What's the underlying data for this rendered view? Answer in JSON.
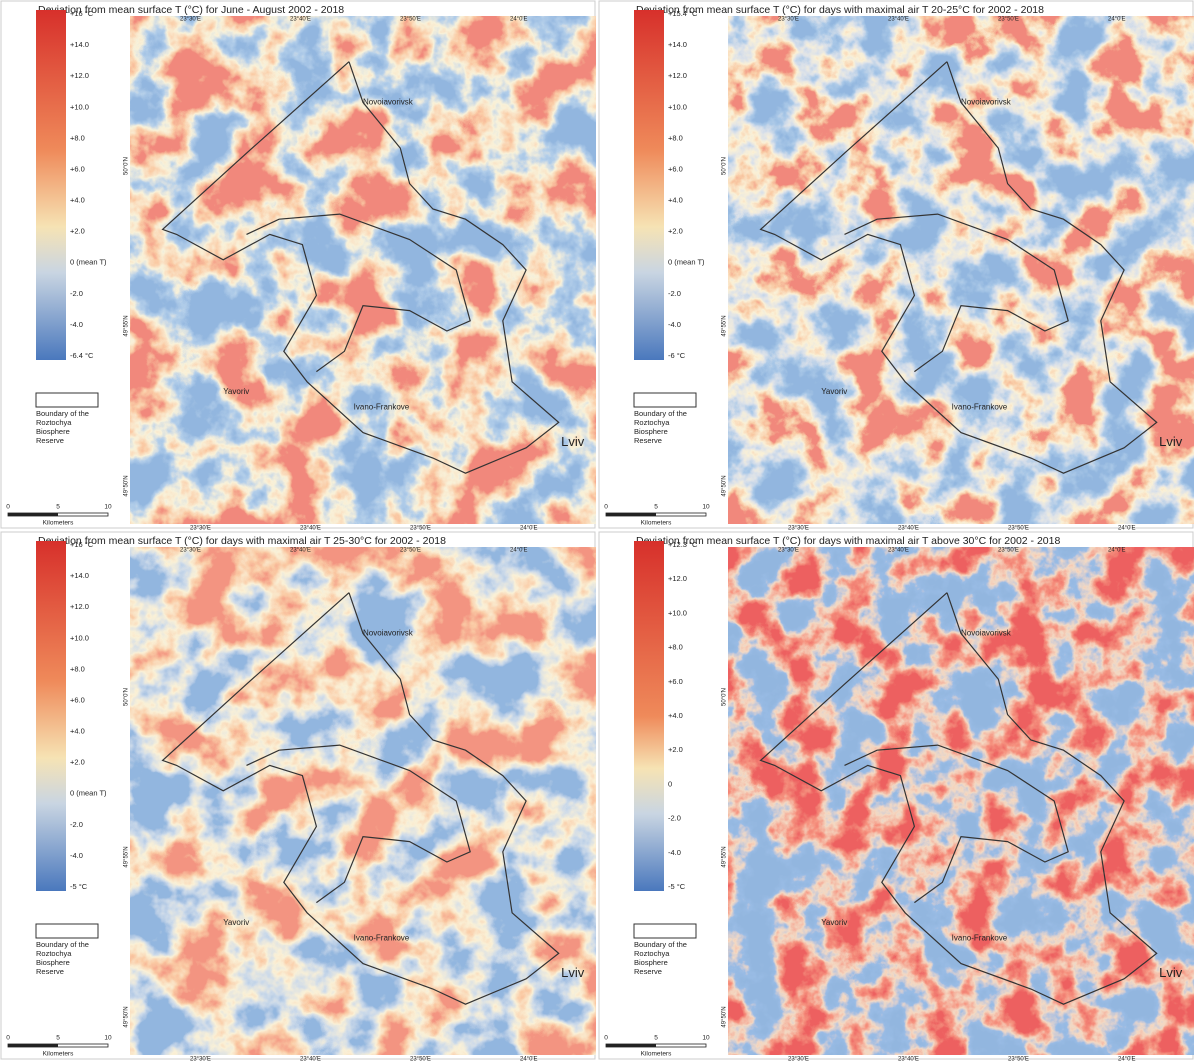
{
  "panels": [
    {
      "title": "Deviation from mean surface T (°C) for June - August 2002 - 2018",
      "legend_labels": [
        "+16 °C",
        "+14.0",
        "+12.0",
        "+10.0",
        "+8.0",
        "+6.0",
        "+4.0",
        "+2.0",
        "0 (mean T)",
        "-2.0",
        "-4.0",
        "-6.4 °C"
      ],
      "boundary_label": [
        "Boundary of the",
        "Roztochya",
        "Biosphere",
        "Reserve"
      ],
      "scale_labels": [
        "0",
        "5",
        "10"
      ],
      "scale_unit": "Kilometers",
      "places": [
        "Novoiavorivsk",
        "Yavoriv",
        "Ivano-Frankove",
        "Lviv"
      ],
      "lon_labels": [
        "23°30'E",
        "23°40'E",
        "23°50'E",
        "24°0'E"
      ],
      "lat_labels": [
        "50°0'N",
        "49°55'N",
        "49°50'N"
      ]
    },
    {
      "title": "Deviation from mean surface T (°C) for days with maximal air T 20-25°C for 2002 - 2018",
      "legend_labels": [
        "+15.4 °C",
        "+14.0",
        "+12.0",
        "+10.0",
        "+8.0",
        "+6.0",
        "+4.0",
        "+2.0",
        "0 (mean T)",
        "-2.0",
        "-4.0",
        "-6 °C"
      ],
      "boundary_label": [
        "Boundary of the",
        "Roztochya",
        "Biosphere",
        "Reserve"
      ],
      "scale_labels": [
        "0",
        "5",
        "10"
      ],
      "scale_unit": "Kilometers",
      "places": [
        "Novoiavorivsk",
        "Yavoriv",
        "Ivano-Frankove",
        "Lviv"
      ],
      "lon_labels": [
        "23°30'E",
        "23°40'E",
        "23°50'E",
        "24°0'E"
      ],
      "lat_labels": [
        "50°0'N",
        "49°55'N",
        "49°50'N"
      ]
    },
    {
      "title": "Deviation from mean surface T (°C) for days with maximal air T 25-30°C for 2002 - 2018",
      "legend_labels": [
        "+16 °C",
        "+14.0",
        "+12.0",
        "+10.0",
        "+8.0",
        "+6.0",
        "+4.0",
        "+2.0",
        "0 (mean T)",
        "-2.0",
        "-4.0",
        "-5 °C"
      ],
      "boundary_label": [
        "Boundary of the",
        "Roztochya",
        "Biosphere",
        "Reserve"
      ],
      "scale_labels": [
        "0",
        "5",
        "10"
      ],
      "scale_unit": "Kilometers",
      "places": [
        "Novoiavorivsk",
        "Yavoriv",
        "Ivano-Frankove",
        "Lviv"
      ],
      "lon_labels": [
        "23°30'E",
        "23°40'E",
        "23°50'E",
        "24°0'E"
      ],
      "lat_labels": [
        "50°0'N",
        "49°55'N",
        "49°50'N"
      ]
    },
    {
      "title": "Deviation from mean surface T (°C) for days with maximal air T above 30°C for 2002 - 2018",
      "legend_labels": [
        "+12.3 °C",
        "+12.0",
        "+10.0",
        "+8.0",
        "+6.0",
        "+4.0",
        "+2.0",
        "0",
        "-2.0",
        "-4.0",
        "-5 °C"
      ],
      "boundary_label": [
        "Boundary of the",
        "Roztochya",
        "Biosphere",
        "Reserve"
      ],
      "scale_labels": [
        "0",
        "5",
        "10"
      ],
      "scale_unit": "Kilometers",
      "places": [
        "Novoiavorivsk",
        "Yavoriv",
        "Ivano-Frankove",
        "Lviv"
      ],
      "lon_labels": [
        "23°30'E",
        "23°40'E",
        "23°50'E",
        "24°0'E"
      ],
      "lat_labels": [
        "50°0'N",
        "49°55'N",
        "49°50'N"
      ]
    }
  ]
}
